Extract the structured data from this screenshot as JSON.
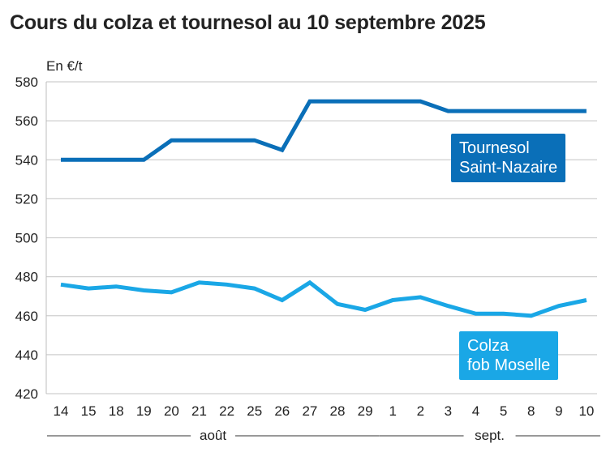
{
  "title": "Cours du colza et tournesol au 10 septembre 2025",
  "colors": {
    "tournesol": "#0a6fb8",
    "colza": "#1aa7e6",
    "grid": "#cfcfcf",
    "text": "#222222"
  },
  "chart_data": {
    "type": "line",
    "title": "Cours du colza et tournesol au 10 septembre 2025",
    "ylabel": "En €/t",
    "xlabel": "",
    "ylim": [
      420,
      580
    ],
    "yticks": [
      420,
      440,
      460,
      480,
      500,
      520,
      540,
      560,
      580
    ],
    "grid": true,
    "categories": [
      "14",
      "15",
      "18",
      "19",
      "20",
      "21",
      "22",
      "25",
      "26",
      "27",
      "28",
      "29",
      "1",
      "2",
      "3",
      "4",
      "5",
      "8",
      "9",
      "10"
    ],
    "month_groups": [
      {
        "label": "août",
        "from": 0,
        "to": 11
      },
      {
        "label": "sept.",
        "from": 12,
        "to": 19
      }
    ],
    "series": [
      {
        "name": [
          "Tournesol",
          "Saint-Nazaire"
        ],
        "color": "#0a6fb8",
        "values": [
          540,
          540,
          540,
          540,
          550,
          550,
          550,
          550,
          545,
          570,
          570,
          570,
          570,
          570,
          565,
          565,
          565,
          565,
          565,
          565
        ]
      },
      {
        "name": [
          "Colza",
          "fob Moselle"
        ],
        "color": "#1aa7e6",
        "values": [
          476,
          474,
          475,
          473,
          472,
          477,
          476,
          474,
          468,
          477,
          466,
          463,
          468,
          469.5,
          465,
          461,
          461,
          460,
          465,
          468
        ]
      }
    ]
  }
}
